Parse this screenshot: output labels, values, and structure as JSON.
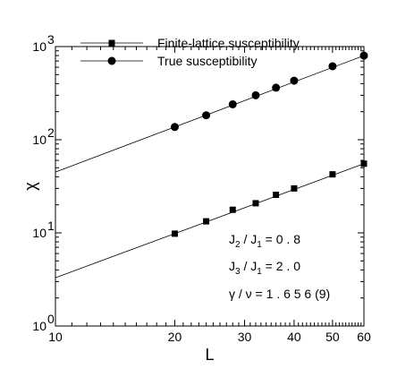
{
  "chart_data": {
    "type": "scatter",
    "x_scale": "log",
    "y_scale": "log",
    "xlim": [
      10,
      60
    ],
    "ylim": [
      1,
      1000
    ],
    "xlabel": "L",
    "ylabel": "χ",
    "x_ticks": [
      10,
      20,
      30,
      40,
      50,
      60
    ],
    "x_tick_labels": [
      "10",
      "20",
      "30",
      "40",
      "50",
      "60"
    ],
    "y_tick_labels": [
      {
        "base": "10",
        "exp": "0"
      },
      {
        "base": "10",
        "exp": "1"
      },
      {
        "base": "10",
        "exp": "2"
      },
      {
        "base": "10",
        "exp": "3"
      }
    ],
    "legend_placement": "top-left",
    "series": [
      {
        "name": "Finite-lattice susceptibility",
        "marker": "square",
        "x": [
          20,
          24,
          28,
          32,
          36,
          40,
          50,
          60
        ],
        "y": [
          9.8,
          13.3,
          17.7,
          20.8,
          25.6,
          30,
          42.5,
          55.3
        ],
        "fit": {
          "x": [
            10,
            60
          ],
          "y": [
            3.3,
            55.3
          ]
        }
      },
      {
        "name": "True susceptibility",
        "marker": "circle",
        "x": [
          20,
          24,
          28,
          32,
          36,
          40,
          50,
          60
        ],
        "y": [
          137,
          183,
          240,
          300,
          362,
          430,
          615,
          800
        ],
        "fit": {
          "x": [
            10,
            60
          ],
          "y": [
            45,
            800
          ]
        }
      }
    ],
    "annotations": [
      {
        "parts": [
          {
            "t": "J"
          },
          {
            "t": "2",
            "sub": true
          },
          {
            "t": " / J"
          },
          {
            "t": "1",
            "sub": true
          },
          {
            "t": " = 0 . 8"
          }
        ]
      },
      {
        "parts": [
          {
            "t": "J"
          },
          {
            "t": "3",
            "sub": true
          },
          {
            "t": " / J"
          },
          {
            "t": "1",
            "sub": true
          },
          {
            "t": " = 2 . 0"
          }
        ]
      },
      {
        "parts": [
          {
            "t": "γ / ν =  1 . 6 5 6 (9)"
          }
        ]
      }
    ]
  }
}
